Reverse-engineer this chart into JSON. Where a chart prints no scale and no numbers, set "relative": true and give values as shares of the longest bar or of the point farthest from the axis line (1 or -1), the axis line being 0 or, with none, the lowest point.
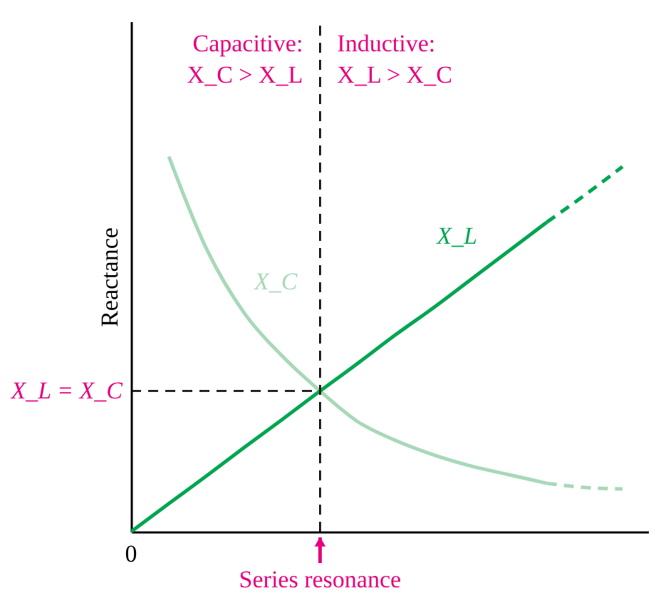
{
  "chart_data": {
    "type": "line",
    "relative": true,
    "ylabel": "Reactance",
    "categories": [
      null,
      null,
      null,
      null,
      null,
      null,
      null,
      null,
      null,
      null,
      null,
      null,
      null,
      null
    ],
    "series": [
      {
        "name": "X_C",
        "color": "#a8d8b9",
        "line_style": "solid",
        "values": [
          null,
          1,
          0.753,
          0.582,
          0.468,
          0.375,
          0.293,
          0.243,
          0.205,
          0.175,
          0.152,
          0.129,
          null,
          null
        ]
      },
      {
        "color": "#a8d8b9",
        "line_style": "dashed",
        "values": [
          null,
          null,
          null,
          null,
          null,
          null,
          null,
          null,
          null,
          null,
          null,
          0.129,
          0.118,
          0.114
        ]
      },
      {
        "name": "X_L",
        "color": "#00a651",
        "line_style": "solid",
        "values": [
          0,
          0.075,
          0.149,
          0.225,
          0.299,
          0.375,
          0.449,
          0.525,
          0.597,
          0.673,
          0.749,
          0.825,
          null,
          null
        ]
      },
      {
        "color": "#00a651",
        "line_style": "dashed",
        "values": [
          null,
          null,
          null,
          null,
          null,
          null,
          null,
          null,
          null,
          null,
          null,
          0.825,
          0.897,
          0.973
        ]
      }
    ],
    "ref_lines": [
      {
        "axis": "y",
        "value": 0.375,
        "label": "X_L = X_C",
        "color": "#000000",
        "line_style": "dashed"
      }
    ],
    "annotations": [
      "Capacitive:\nX_C > X_L",
      "Inductive:\nX_L > X_C",
      "0",
      "Series resonance"
    ]
  }
}
